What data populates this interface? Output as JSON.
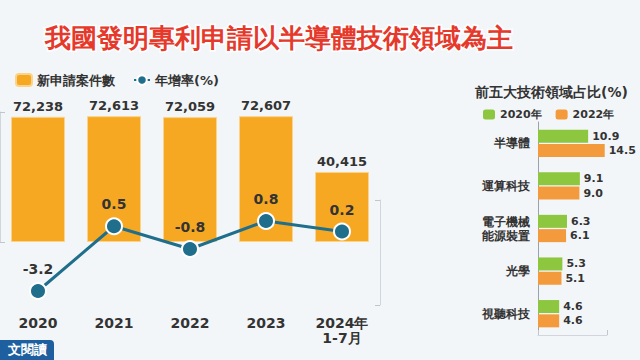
{
  "title": "我國發明專利申請以半導體技術領域為主",
  "button": "文閱讀",
  "chart_data": [
    {
      "type": "bar",
      "categories": [
        "2020",
        "2021",
        "2022",
        "2023",
        "2024年\n1-7月"
      ],
      "series": [
        {
          "name": "新申請案件數",
          "type": "bar",
          "color": "#F7A823",
          "values": [
            72238,
            72613,
            72059,
            72607,
            40415
          ],
          "value_labels": [
            "72,238",
            "72,613",
            "72,059",
            "72,607",
            "40,415"
          ]
        },
        {
          "name": "年增率(%)",
          "type": "line",
          "axis": "y2",
          "color": "#1F6E8C",
          "marker": "circle",
          "values": [
            -3.2,
            0.5,
            -0.8,
            0.8,
            0.2
          ]
        }
      ],
      "ylim": [
        0,
        75000
      ],
      "yticks": [
        0,
        75000
      ],
      "y2lim": [
        -4,
        2
      ],
      "y2ticks": [
        -4,
        2
      ],
      "data_labels": true,
      "tick_labels": "x",
      "grid": false,
      "legend": "top-left"
    },
    {
      "type": "bar",
      "title": "前五大技術領域占比(%)",
      "orientation": "horizontal",
      "categories": [
        "半導體",
        "運算科技",
        "電子機械\n能源裝置",
        "光學",
        "視聽科技"
      ],
      "series": [
        {
          "name": "2020年",
          "color": "#8DC63F",
          "values": [
            10.9,
            9.1,
            6.3,
            5.3,
            4.6
          ],
          "value_labels": [
            "10.9",
            "9.1",
            "6.3",
            "5.3",
            "4.6"
          ]
        },
        {
          "name": "2022年",
          "color": "#F39A3C",
          "values": [
            14.5,
            9.0,
            6.1,
            5.1,
            4.6
          ],
          "value_labels": [
            "14.5",
            "9.0",
            "6.1",
            "5.1",
            "4.6"
          ]
        }
      ],
      "xlim": [
        0,
        15
      ],
      "xticks": [
        0,
        15
      ],
      "data_labels": true,
      "tick_labels": "y",
      "grid": false,
      "legend": "top-left"
    }
  ]
}
